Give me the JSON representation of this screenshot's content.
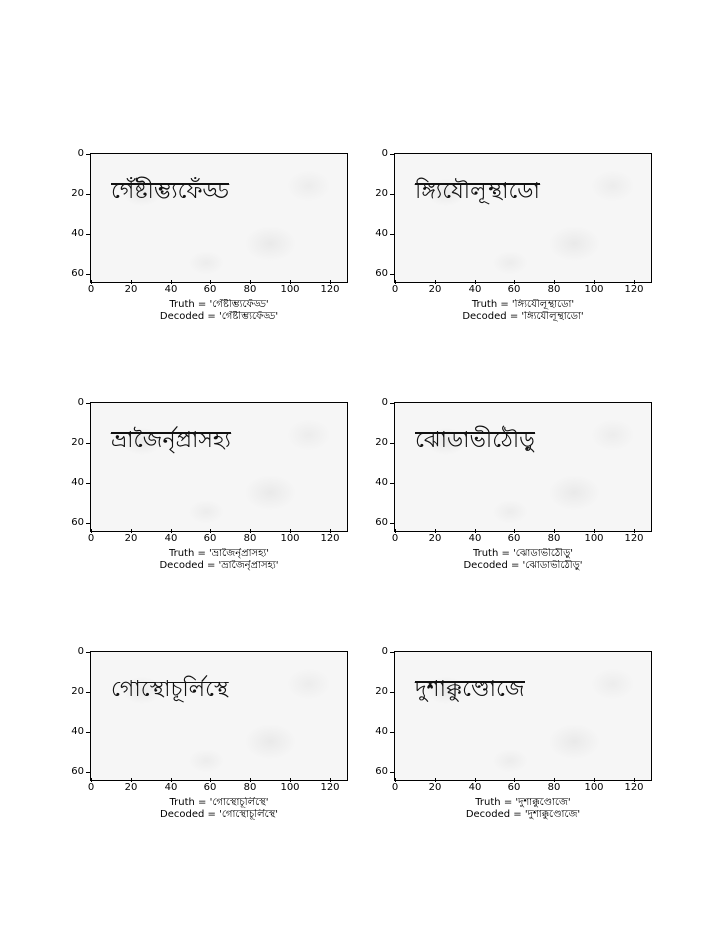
{
  "x_ticks": [
    "0",
    "20",
    "40",
    "60",
    "80",
    "100",
    "120"
  ],
  "y_ticks": [
    "0",
    "20",
    "40",
    "60"
  ],
  "caption_truth_prefix": "Truth = ",
  "caption_decoded_prefix": "Decoded = ",
  "panels": [
    {
      "word": "গেঁষ্টীম্ভ্যফেঁড্ড",
      "truth": "'গেঁষ্টীম্ভ্যফেঁড্ড'",
      "decoded": "'গেঁষ্টীম্ভ্যফেঁড্ড'"
    },
    {
      "word": "ঙ্গ্যিযৌলূম্থাডো",
      "truth": "'ঙ্গ্যিযৌলূম্থাডো'",
      "decoded": "'ঙ্গ্যিযৌলূম্থাডো'"
    },
    {
      "word": "ভ্রাজৈর্নৃপ্রাসহ্য",
      "truth": "'ভ্রাজৈর্নৃপ্রাসহ্য'",
      "decoded": "'ভ্রাজৈর্নৃপ্রাসহ্য'"
    },
    {
      "word": "ঝোডাভীঠৌড়ু",
      "truth": "'ঝোডাভীঠৌড়ু'",
      "decoded": "'ঝোডাভীঠৌড়ু'"
    },
    {
      "word": "গোস্থোচূর্লিস্থে",
      "truth": "'গোস্থোচূর্লিস্থে'",
      "decoded": "'গোস্থোচূর্লিস্থে'"
    },
    {
      "word": "দুশাক্কুণ্ডোজে",
      "truth": "'দুশাক্কুণ্ডোজে'",
      "decoded": "'দুশাক্কুণ্ডোজে'"
    }
  ]
}
